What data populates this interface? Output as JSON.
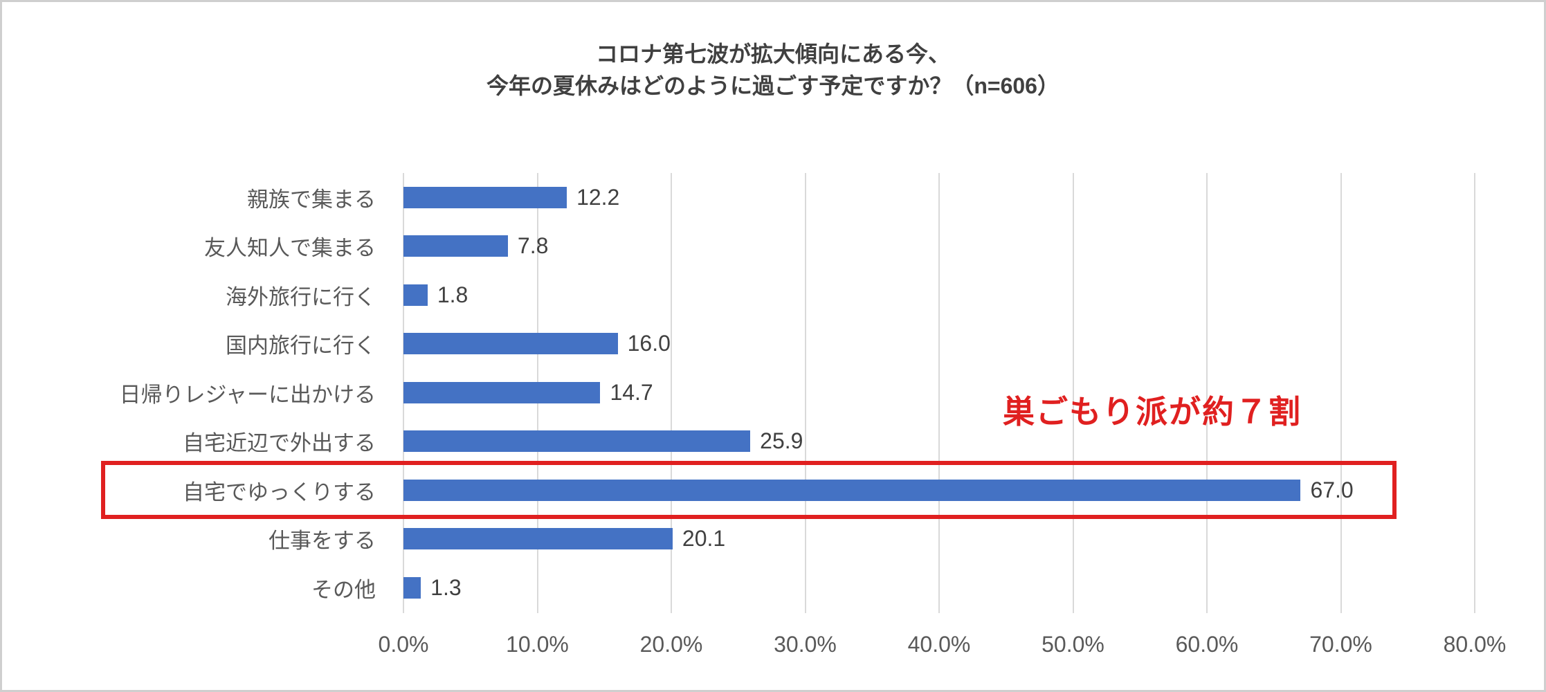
{
  "title": {
    "line1": "コロナ第七波が拡大傾向にある今、",
    "line2": "今年の夏休みはどのように過ごす予定ですか？（n=606）"
  },
  "annotation": {
    "text": "巣ごもり派が約７割"
  },
  "chart_data": {
    "type": "bar",
    "orientation": "horizontal",
    "title": "コロナ第七波が拡大傾向にある今、今年の夏休みはどのように過ごす予定ですか？（n=606）",
    "categories": [
      "親族で集まる",
      "友人知人で集まる",
      "海外旅行に行く",
      "国内旅行に行く",
      "日帰りレジャーに出かける",
      "自宅近辺で外出する",
      "自宅でゆっくりする",
      "仕事をする",
      "その他"
    ],
    "values": [
      12.2,
      7.8,
      1.8,
      16.0,
      14.7,
      25.9,
      67.0,
      20.1,
      1.3
    ],
    "value_labels": [
      "12.2",
      "7.8",
      "1.8",
      "16.0",
      "14.7",
      "25.9",
      "67.0",
      "20.1",
      "1.3"
    ],
    "xlabel": "",
    "ylabel": "",
    "xlim": [
      0,
      80
    ],
    "x_ticks": [
      "0.0%",
      "10.0%",
      "20.0%",
      "30.0%",
      "40.0%",
      "50.0%",
      "60.0%",
      "70.0%",
      "80.0%"
    ],
    "grid": true,
    "legend": "none",
    "bar_color": "#4472c4",
    "highlight": {
      "category_index": 6,
      "box_color": "#e02020",
      "label": "巣ごもり派が約７割"
    }
  },
  "colors": {
    "bar": "#4472c4",
    "highlight_red": "#e02020",
    "axis_text": "#595959",
    "value_text": "#404040",
    "grid": "#d9d9d9",
    "frame_border": "#cfcfcf"
  }
}
